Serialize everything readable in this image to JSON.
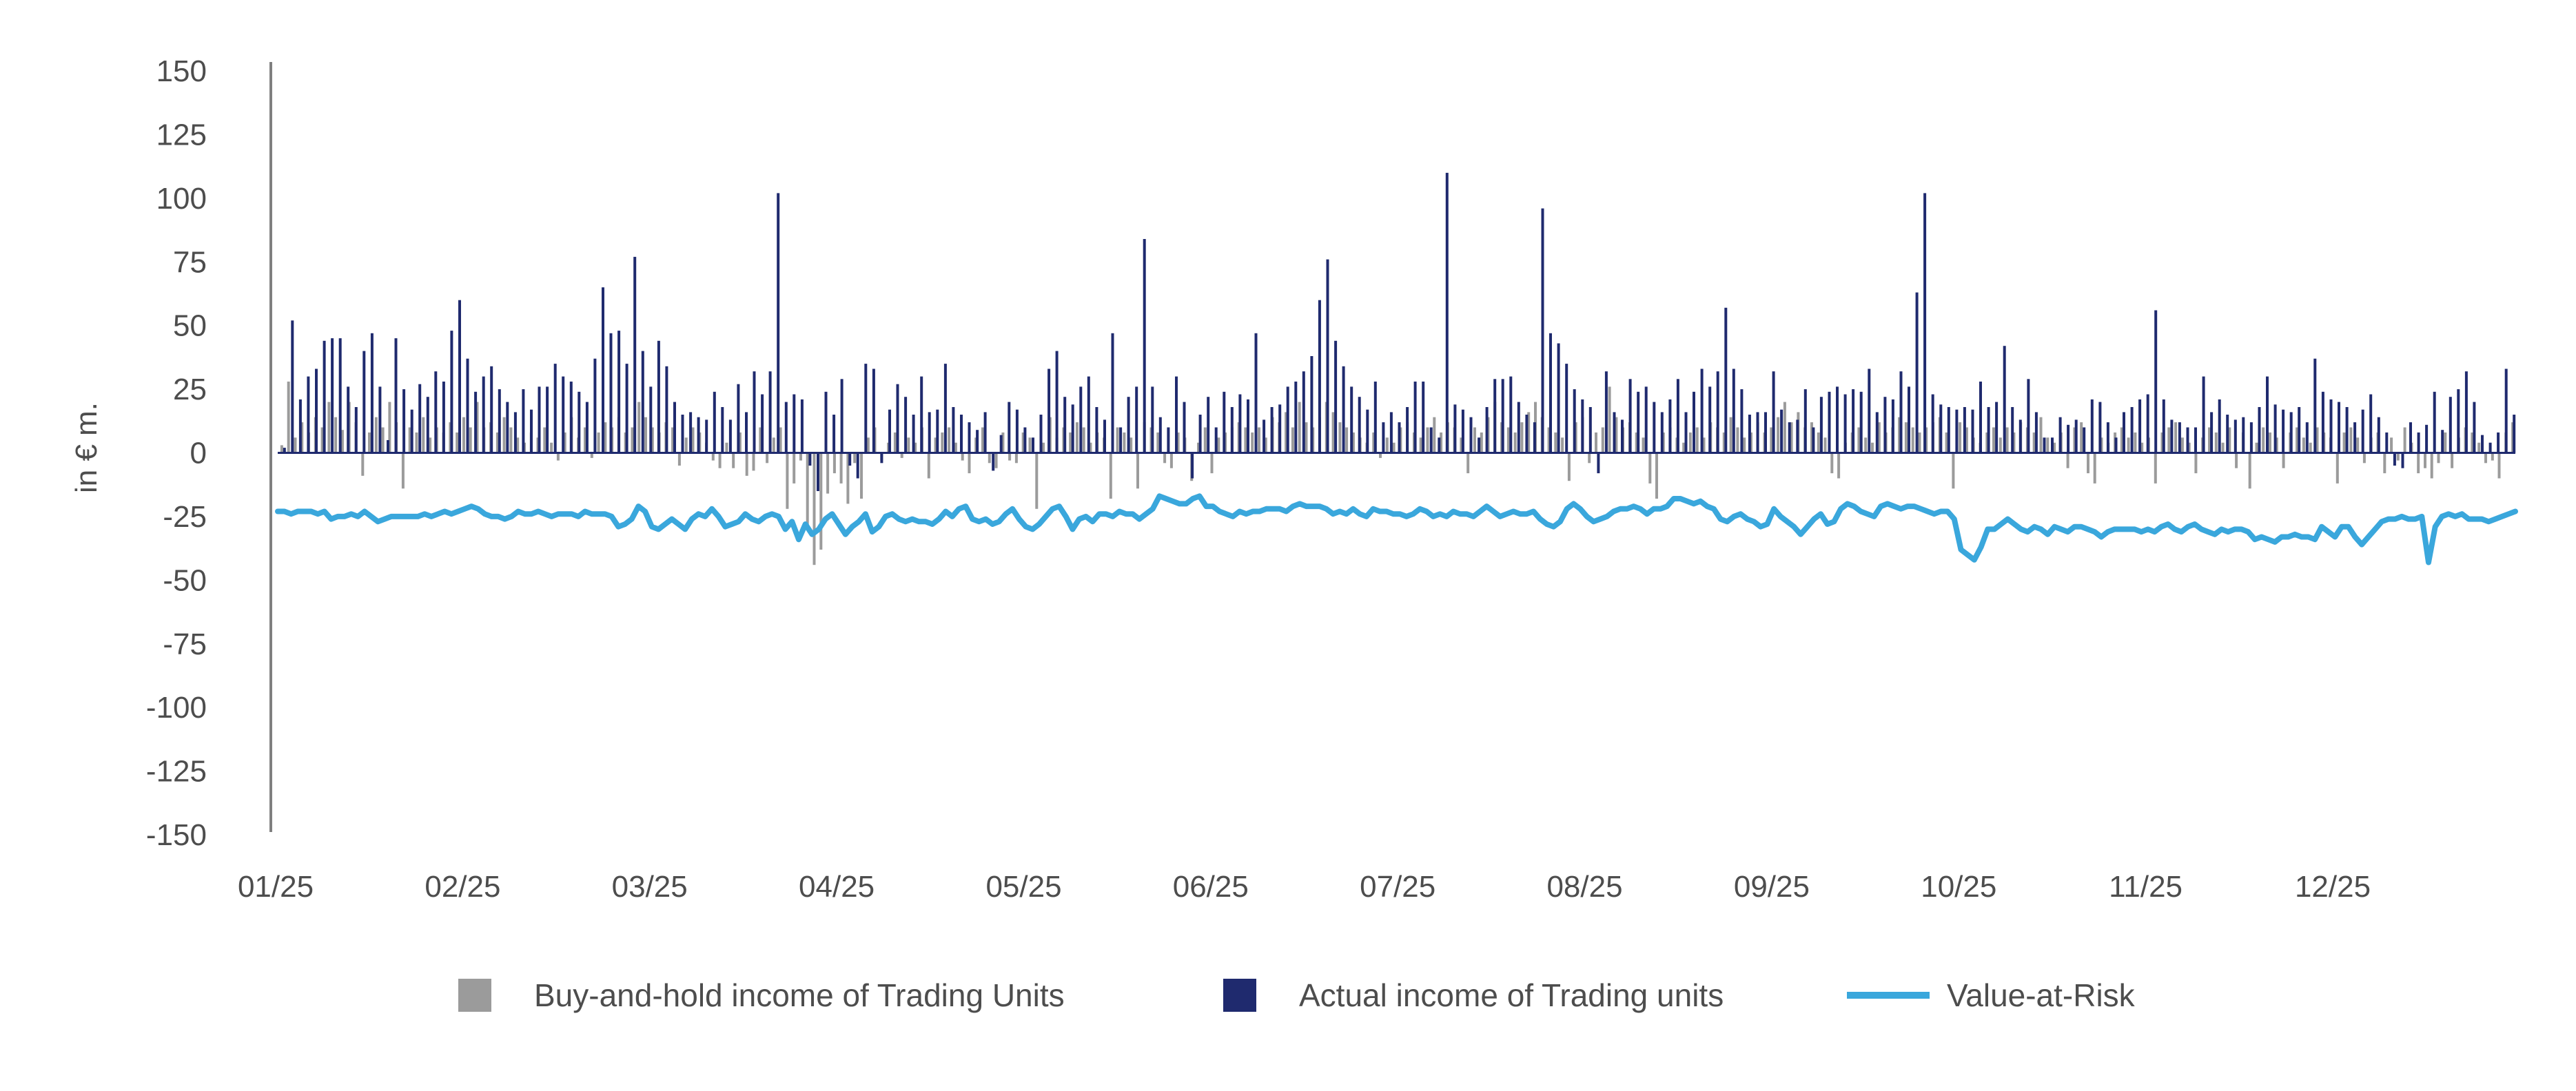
{
  "chart_data": {
    "type": "bar",
    "title": "",
    "xlabel": "",
    "ylabel": "in € m.",
    "ylim": [
      -150,
      150
    ],
    "y_ticks": [
      "150",
      "125",
      "100",
      "75",
      "50",
      "25",
      "0",
      "-25",
      "-50",
      "-75",
      "-100",
      "-125",
      "-150"
    ],
    "x_ticks": [
      "01/25",
      "02/25",
      "03/25",
      "04/25",
      "05/25",
      "06/25",
      "07/25",
      "08/25",
      "09/25",
      "10/25",
      "11/25",
      "12/25"
    ],
    "grid": false,
    "legend_position": "bottom",
    "colors": {
      "buy_and_hold": "#9b9b9b",
      "actual": "#1f2a6e",
      "var": "#3aa7dc",
      "axis": "#7f7f7f"
    },
    "series": [
      {
        "name": "Buy-and-hold income of Trading Units",
        "type": "bar",
        "values": [
          3,
          28,
          6,
          12,
          8,
          14,
          10,
          20,
          14,
          9,
          20,
          12,
          -9,
          8,
          14,
          10,
          20,
          12,
          -14,
          10,
          8,
          14,
          6,
          10,
          8,
          12,
          8,
          14,
          10,
          20,
          10,
          12,
          8,
          14,
          10,
          6,
          4,
          8,
          6,
          10,
          4,
          -3,
          8,
          14,
          6,
          10,
          -2,
          8,
          12,
          10,
          14,
          8,
          10,
          20,
          14,
          10,
          8,
          12,
          10,
          -5,
          6,
          10,
          8,
          4,
          -3,
          -6,
          4,
          -6,
          8,
          -9,
          -7,
          10,
          -4,
          6,
          10,
          -22,
          -12,
          -3,
          -30,
          -44,
          -38,
          -16,
          -8,
          -12,
          -20,
          -4,
          -18,
          6,
          10,
          -3,
          4,
          8,
          -2,
          6,
          4,
          10,
          -10,
          6,
          8,
          10,
          4,
          -3,
          -8,
          6,
          10,
          -4,
          -6,
          8,
          -3,
          -4,
          8,
          6,
          -22,
          4,
          14,
          6,
          10,
          8,
          12,
          10,
          4,
          8,
          6,
          -18,
          10,
          8,
          6,
          -14,
          12,
          10,
          8,
          -4,
          -6,
          8,
          6,
          -11,
          4,
          10,
          -8,
          6,
          8,
          10,
          12,
          10,
          8,
          10,
          6,
          14,
          12,
          16,
          10,
          20,
          12,
          10,
          14,
          20,
          16,
          12,
          10,
          8,
          6,
          4,
          8,
          -2,
          6,
          4,
          10,
          12,
          8,
          6,
          10,
          14,
          8,
          12,
          10,
          6,
          -8,
          10,
          8,
          14,
          20,
          12,
          10,
          8,
          12,
          16,
          20,
          14,
          10,
          8,
          6,
          -11,
          12,
          14,
          -4,
          8,
          10,
          26,
          14,
          10,
          12,
          8,
          6,
          -12,
          -18,
          8,
          10,
          6,
          4,
          8,
          10,
          6,
          12,
          10,
          8,
          14,
          10,
          6,
          8,
          12,
          8,
          10,
          14,
          20,
          12,
          16,
          10,
          12,
          8,
          6,
          -8,
          -10,
          4,
          8,
          10,
          6,
          4,
          12,
          8,
          10,
          14,
          12,
          10,
          8,
          10,
          12,
          14,
          8,
          -14,
          12,
          10,
          6,
          4,
          8,
          10,
          6,
          10,
          8,
          12,
          10,
          8,
          14,
          6,
          4,
          8,
          -6,
          10,
          12,
          -8,
          -12,
          6,
          4,
          8,
          10,
          6,
          8,
          4,
          6,
          -12,
          8,
          10,
          12,
          6,
          4,
          -8,
          6,
          10,
          8,
          4,
          10,
          -6,
          8,
          -14,
          4,
          10,
          8,
          6,
          -6,
          8,
          10,
          6,
          4,
          10,
          8,
          6,
          -12,
          8,
          10,
          6,
          -4,
          6,
          8,
          -8,
          6,
          -3,
          10,
          4,
          -8,
          -6,
          -10,
          -4,
          8,
          -6,
          6,
          10,
          8,
          4,
          -4,
          -3,
          -10,
          8,
          12
        ],
        "x_fraction_start": 0.0,
        "x_fraction_end": 1.0
      },
      {
        "name": "Actual income of Trading units",
        "type": "bar",
        "values": [
          2,
          52,
          21,
          30,
          33,
          44,
          45,
          45,
          26,
          18,
          40,
          47,
          26,
          5,
          45,
          25,
          17,
          27,
          22,
          32,
          28,
          48,
          60,
          37,
          24,
          30,
          34,
          25,
          20,
          16,
          25,
          17,
          26,
          26,
          35,
          30,
          28,
          24,
          20,
          37,
          65,
          47,
          48,
          35,
          77,
          40,
          26,
          44,
          34,
          20,
          15,
          16,
          14,
          13,
          24,
          18,
          13,
          27,
          16,
          32,
          23,
          32,
          102,
          20,
          23,
          21,
          -5,
          -15,
          24,
          15,
          29,
          -5,
          -10,
          35,
          33,
          -4,
          17,
          27,
          22,
          15,
          30,
          16,
          17,
          35,
          18,
          15,
          12,
          9,
          16,
          -7,
          7,
          20,
          17,
          10,
          6,
          15,
          33,
          40,
          22,
          19,
          26,
          30,
          18,
          13,
          47,
          10,
          22,
          26,
          84,
          26,
          14,
          10,
          30,
          20,
          -10,
          15,
          22,
          10,
          24,
          18,
          23,
          21,
          47,
          13,
          18,
          19,
          26,
          28,
          32,
          38,
          60,
          76,
          44,
          34,
          26,
          22,
          17,
          28,
          12,
          16,
          12,
          18,
          28,
          28,
          10,
          6,
          110,
          19,
          17,
          14,
          6,
          18,
          29,
          29,
          30,
          20,
          15,
          12,
          96,
          47,
          43,
          35,
          25,
          21,
          18,
          -8,
          32,
          16,
          13,
          29,
          24,
          26,
          20,
          16,
          21,
          29,
          16,
          24,
          33,
          26,
          32,
          57,
          33,
          25,
          15,
          16,
          16,
          32,
          17,
          12,
          13,
          25,
          10,
          22,
          24,
          26,
          23,
          25,
          24,
          33,
          16,
          22,
          21,
          32,
          26,
          63,
          102,
          23,
          19,
          18,
          17,
          18,
          17,
          28,
          18,
          20,
          42,
          18,
          13,
          29,
          16,
          6,
          6,
          14,
          11,
          13,
          10,
          21,
          20,
          12,
          6,
          16,
          18,
          21,
          23,
          56,
          21,
          13,
          12,
          10,
          10,
          30,
          16,
          21,
          15,
          13,
          14,
          12,
          18,
          30,
          19,
          17,
          16,
          18,
          12,
          37,
          24,
          21,
          20,
          18,
          12,
          17,
          23,
          14,
          8,
          -5,
          -6,
          12,
          8,
          11,
          24,
          9,
          22,
          25,
          32,
          20,
          7,
          4,
          8,
          33,
          15
        ],
        "x_fraction_start": 0.002,
        "x_fraction_end": 0.998
      },
      {
        "name": "Value-at-Risk",
        "type": "line",
        "values": [
          -23,
          -23,
          -24,
          -23,
          -23,
          -23,
          -24,
          -23,
          -26,
          -25,
          -25,
          -24,
          -25,
          -23,
          -25,
          -27,
          -26,
          -25,
          -25,
          -25,
          -25,
          -25,
          -24,
          -25,
          -24,
          -23,
          -24,
          -23,
          -22,
          -21,
          -22,
          -24,
          -25,
          -25,
          -26,
          -25,
          -23,
          -24,
          -24,
          -23,
          -24,
          -25,
          -24,
          -24,
          -24,
          -25,
          -23,
          -24,
          -24,
          -24,
          -25,
          -29,
          -28,
          -26,
          -21,
          -23,
          -29,
          -30,
          -28,
          -26,
          -28,
          -30,
          -26,
          -24,
          -25,
          -22,
          -25,
          -29,
          -28,
          -27,
          -24,
          -26,
          -27,
          -25,
          -24,
          -25,
          -30,
          -27,
          -34,
          -28,
          -32,
          -30,
          -26,
          -24,
          -28,
          -32,
          -29,
          -27,
          -24,
          -31,
          -29,
          -25,
          -24,
          -26,
          -27,
          -26,
          -27,
          -27,
          -28,
          -26,
          -23,
          -25,
          -22,
          -21,
          -26,
          -27,
          -26,
          -28,
          -27,
          -24,
          -22,
          -26,
          -29,
          -30,
          -28,
          -25,
          -22,
          -21,
          -25,
          -30,
          -26,
          -25,
          -27,
          -24,
          -24,
          -25,
          -23,
          -24,
          -24,
          -26,
          -24,
          -22,
          -17,
          -18,
          -19,
          -20,
          -20,
          -18,
          -17,
          -21,
          -21,
          -23,
          -24,
          -25,
          -23,
          -24,
          -23,
          -23,
          -22,
          -22,
          -22,
          -23,
          -21,
          -20,
          -21,
          -21,
          -21,
          -22,
          -24,
          -23,
          -24,
          -22,
          -24,
          -25,
          -22,
          -23,
          -23,
          -24,
          -24,
          -25,
          -24,
          -22,
          -23,
          -25,
          -24,
          -25,
          -23,
          -24,
          -24,
          -25,
          -23,
          -21,
          -23,
          -25,
          -24,
          -23,
          -24,
          -24,
          -23,
          -26,
          -28,
          -29,
          -27,
          -22,
          -20,
          -22,
          -25,
          -27,
          -26,
          -25,
          -23,
          -22,
          -22,
          -21,
          -22,
          -24,
          -22,
          -22,
          -21,
          -18,
          -18,
          -19,
          -20,
          -19,
          -21,
          -22,
          -26,
          -27,
          -25,
          -24,
          -26,
          -27,
          -29,
          -28,
          -22,
          -25,
          -27,
          -29,
          -32,
          -29,
          -26,
          -24,
          -28,
          -27,
          -22,
          -20,
          -21,
          -23,
          -24,
          -25,
          -21,
          -20,
          -21,
          -22,
          -21,
          -21,
          -22,
          -23,
          -24,
          -23,
          -23,
          -26,
          -38,
          -40,
          -42,
          -37,
          -30,
          -30,
          -28,
          -26,
          -28,
          -30,
          -31,
          -29,
          -30,
          -32,
          -29,
          -30,
          -31,
          -29,
          -29,
          -30,
          -31,
          -33,
          -31,
          -30,
          -30,
          -30,
          -30,
          -31,
          -30,
          -31,
          -29,
          -28,
          -30,
          -31,
          -29,
          -28,
          -30,
          -31,
          -32,
          -30,
          -31,
          -30,
          -30,
          -31,
          -34,
          -33,
          -34,
          -35,
          -33,
          -33,
          -32,
          -33,
          -33,
          -34,
          -29,
          -31,
          -33,
          -29,
          -29,
          -33,
          -36,
          -33,
          -30,
          -27,
          -26,
          -26,
          -25,
          -26,
          -26,
          -25,
          -43,
          -29,
          -25,
          -24,
          -25,
          -24,
          -26,
          -26,
          -26,
          -27,
          -26,
          -25,
          -24,
          -23
        ]
      }
    ]
  },
  "legend": [
    {
      "key": "buy_and_hold",
      "label": "Buy-and-hold income of Trading Units",
      "symbol": "square"
    },
    {
      "key": "actual",
      "label": "Actual income of Trading units",
      "symbol": "square"
    },
    {
      "key": "var",
      "label": "Value-at-Risk",
      "symbol": "line"
    }
  ]
}
